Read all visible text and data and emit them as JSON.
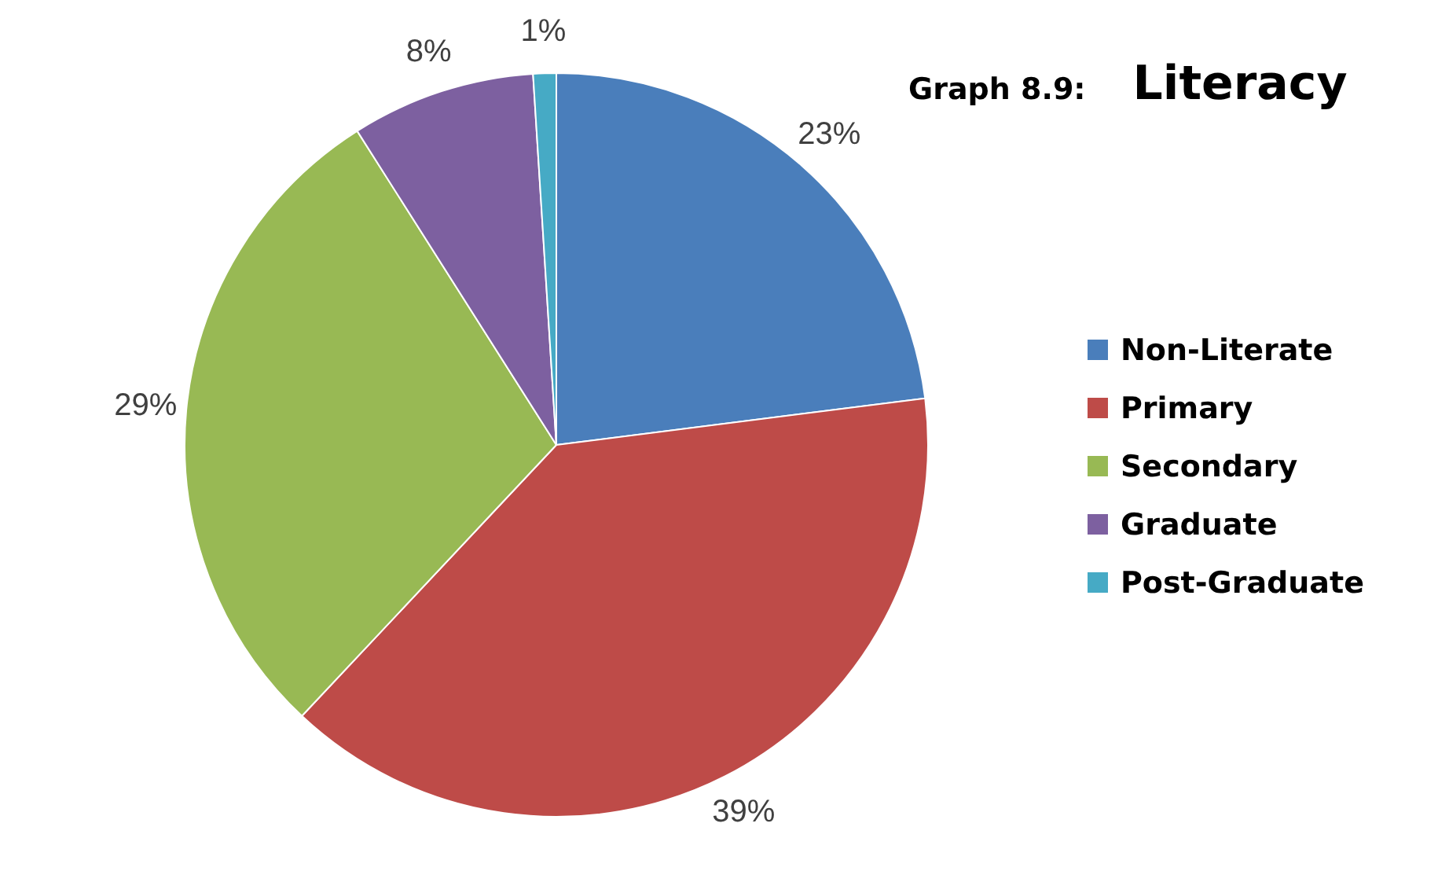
{
  "chart_data": {
    "type": "pie",
    "title": "Literacy",
    "subtitle": "Graph 8.9:",
    "categories": [
      "Non-Literate",
      "Primary",
      "Secondary",
      "Graduate",
      "Post-Graduate"
    ],
    "values": [
      23,
      39,
      29,
      8,
      1
    ],
    "colors": [
      "#4a7ebb",
      "#be4b48",
      "#98b954",
      "#7d60a0",
      "#46aac5"
    ],
    "value_labels": [
      "23%",
      "39%",
      "29%",
      "8%",
      "1%"
    ],
    "legend": "right"
  }
}
